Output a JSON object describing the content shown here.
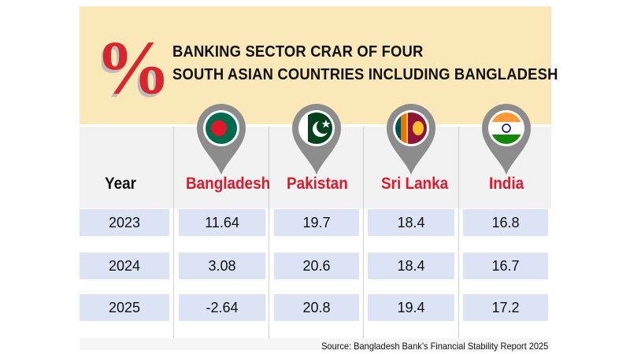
{
  "chart_data": {
    "type": "table",
    "title": [
      "BANKING SECTOR CRAR OF FOUR",
      "SOUTH ASIAN COUNTRIES INCLUDING BANGLADESH"
    ],
    "header_symbol": "%",
    "columns": [
      "Year",
      "Bangladesh",
      "Pakistan",
      "Sri Lanka",
      "India"
    ],
    "rows": [
      {
        "year": "2023",
        "values": [
          "11.64",
          "19.7",
          "18.4",
          "16.8"
        ]
      },
      {
        "year": "2024",
        "values": [
          "3.08",
          "20.6",
          "18.4",
          "16.7"
        ]
      },
      {
        "year": "2025",
        "values": [
          "-2.64",
          "20.8",
          "19.4",
          "17.2"
        ]
      }
    ],
    "source": "Source: Bangladesh Bank’s Financial Stability Report 2025"
  },
  "icons": [
    "percent-icon",
    "bangladesh-flag-pin-icon",
    "pakistan-flag-pin-icon",
    "sri-lanka-flag-pin-icon",
    "india-flag-pin-icon"
  ],
  "colors": {
    "header_bg": "#fbe8b8",
    "country_label": "#e4172a",
    "percent_red": "#d9252d",
    "cell_bg": "#dce3f4",
    "pin_gray": "#8c8c8c"
  }
}
